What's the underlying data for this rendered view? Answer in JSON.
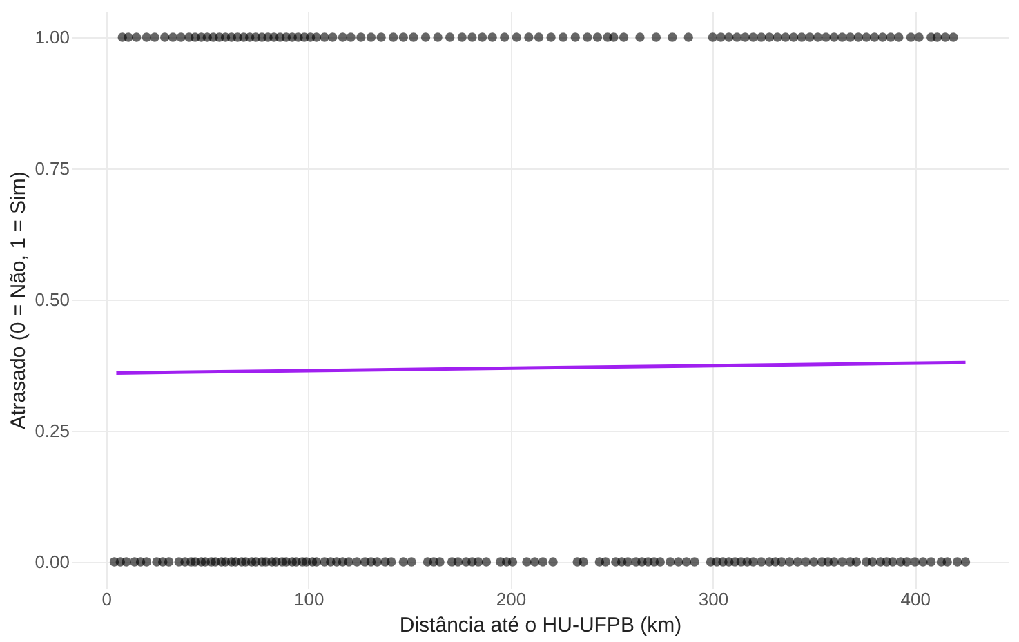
{
  "chart_data": {
    "type": "scatter",
    "xlabel": "Distância até o HU-UFPB (km)",
    "ylabel": "Atrasado (0 = Não, 1 = Sim)",
    "xlim": [
      -17,
      446
    ],
    "xticks": [
      0,
      100,
      200,
      300,
      400
    ],
    "ylim": [
      -0.05,
      1.05
    ],
    "yticks": [
      {
        "value": 0,
        "label": "0.00"
      },
      {
        "value": 0.25,
        "label": "0.25"
      },
      {
        "value": 0.5,
        "label": "0.50"
      },
      {
        "value": 0.75,
        "label": "0.75"
      },
      {
        "value": 1,
        "label": "1.00"
      }
    ],
    "grid": true,
    "series": [
      {
        "color": "#000000",
        "marker": "circle",
        "x": [
          8,
          11,
          15,
          20,
          24,
          29,
          33,
          37,
          41,
          44,
          47,
          50,
          53,
          56,
          59,
          62,
          65,
          68,
          71,
          74,
          77,
          80,
          83,
          86,
          89,
          92,
          95,
          98,
          101,
          104,
          108,
          112,
          117,
          121,
          126,
          131,
          136,
          142,
          147,
          152,
          158,
          164,
          170,
          176,
          181,
          186,
          191,
          197,
          203,
          209,
          214,
          220,
          226,
          232,
          238,
          243,
          248,
          251,
          256,
          264,
          272,
          280,
          288,
          300,
          304,
          308,
          312,
          316,
          320,
          324,
          328,
          332,
          336,
          340,
          344,
          348,
          352,
          356,
          360,
          364,
          368,
          372,
          376,
          380,
          384,
          388,
          392,
          398,
          402,
          408,
          411,
          415,
          419
        ],
        "values": [
          1,
          1,
          1,
          1,
          1,
          1,
          1,
          1,
          1,
          1,
          1,
          1,
          1,
          1,
          1,
          1,
          1,
          1,
          1,
          1,
          1,
          1,
          1,
          1,
          1,
          1,
          1,
          1,
          1,
          1,
          1,
          1,
          1,
          1,
          1,
          1,
          1,
          1,
          1,
          1,
          1,
          1,
          1,
          1,
          1,
          1,
          1,
          1,
          1,
          1,
          1,
          1,
          1,
          1,
          1,
          1,
          1,
          1,
          1,
          1,
          1,
          1,
          1,
          1,
          1,
          1,
          1,
          1,
          1,
          1,
          1,
          1,
          1,
          1,
          1,
          1,
          1,
          1,
          1,
          1,
          1,
          1,
          1,
          1,
          1,
          1,
          1,
          1,
          1,
          1,
          1,
          1,
          1
        ]
      },
      {
        "color": "#000000",
        "marker": "circle",
        "x": [
          4,
          7,
          10,
          14,
          17,
          20,
          25,
          28,
          31,
          36,
          39,
          42,
          44,
          47,
          49,
          52,
          54,
          57,
          59,
          62,
          64,
          67,
          69,
          72,
          74,
          77,
          79,
          82,
          84,
          87,
          89,
          92,
          94,
          97,
          99,
          102,
          104,
          108,
          111,
          114,
          117,
          120,
          124,
          128,
          131,
          134,
          138,
          141,
          147,
          151,
          159,
          162,
          165,
          171,
          174,
          178,
          181,
          184,
          188,
          195,
          198,
          201,
          208,
          212,
          216,
          221,
          233,
          236,
          244,
          247,
          252,
          255,
          258,
          262,
          265,
          268,
          271,
          274,
          279,
          283,
          287,
          291,
          299,
          302,
          305,
          308,
          311,
          314,
          317,
          320,
          324,
          328,
          331,
          334,
          338,
          342,
          346,
          350,
          354,
          357,
          360,
          364,
          368,
          371,
          376,
          379,
          383,
          386,
          389,
          393,
          396,
          400,
          404,
          408,
          413,
          416,
          421,
          425
        ],
        "values": [
          0,
          0,
          0,
          0,
          0,
          0,
          0,
          0,
          0,
          0,
          0,
          0,
          0,
          0,
          0,
          0,
          0,
          0,
          0,
          0,
          0,
          0,
          0,
          0,
          0,
          0,
          0,
          0,
          0,
          0,
          0,
          0,
          0,
          0,
          0,
          0,
          0,
          0,
          0,
          0,
          0,
          0,
          0,
          0,
          0,
          0,
          0,
          0,
          0,
          0,
          0,
          0,
          0,
          0,
          0,
          0,
          0,
          0,
          0,
          0,
          0,
          0,
          0,
          0,
          0,
          0,
          0,
          0,
          0,
          0,
          0,
          0,
          0,
          0,
          0,
          0,
          0,
          0,
          0,
          0,
          0,
          0,
          0,
          0,
          0,
          0,
          0,
          0,
          0,
          0,
          0,
          0,
          0,
          0,
          0,
          0,
          0,
          0,
          0,
          0,
          0,
          0,
          0,
          0,
          0,
          0,
          0,
          0,
          0,
          0,
          0,
          0,
          0,
          0,
          0,
          0,
          0,
          0
        ]
      },
      {
        "type": "line",
        "color": "#a020f0",
        "x": [
          5,
          425
        ],
        "values": [
          0.36,
          0.38
        ]
      }
    ]
  }
}
